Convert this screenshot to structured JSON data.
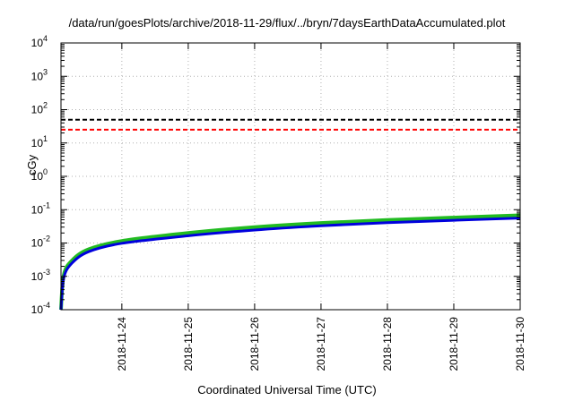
{
  "chart_data": {
    "type": "line",
    "title": "/data/run/goesPlots/archive/2018-11-29/flux/../bryn/7daysEarthDataAccumulated.plot",
    "xlabel": "Coordinated Universal Time (UTC)",
    "ylabel": "cGy",
    "y_scale": "log",
    "ylim": [
      0.0001,
      10000
    ],
    "y_ticks": [
      {
        "exp": -4,
        "label": "10",
        "sup": "-4"
      },
      {
        "exp": -3,
        "label": "10",
        "sup": "-3"
      },
      {
        "exp": -2,
        "label": "10",
        "sup": "-2"
      },
      {
        "exp": -1,
        "label": "10",
        "sup": "-1"
      },
      {
        "exp": 0,
        "label": "10",
        "sup": "0"
      },
      {
        "exp": 1,
        "label": "10",
        "sup": "1"
      },
      {
        "exp": 2,
        "label": "10",
        "sup": "2"
      },
      {
        "exp": 3,
        "label": "10",
        "sup": "3"
      },
      {
        "exp": 4,
        "label": "10",
        "sup": "4"
      }
    ],
    "xlim": [
      "2018-11-23T02:00",
      "2018-11-30T00:00"
    ],
    "x_ticks": [
      "2018-11-24",
      "2018-11-25",
      "2018-11-26",
      "2018-11-27",
      "2018-11-28",
      "2018-11-29",
      "2018-11-30"
    ],
    "grid": true,
    "thresholds": [
      {
        "value": 50,
        "color": "#000000",
        "style": "dashed"
      },
      {
        "value": 25,
        "color": "#ff0000",
        "style": "dashed"
      }
    ],
    "series": [
      {
        "color": "#22bb22",
        "x": [
          "2018-11-23T02:00",
          "2018-11-23T03:00",
          "2018-11-23T06:00",
          "2018-11-23T12:00",
          "2018-11-24T00:00",
          "2018-11-25T00:00",
          "2018-11-26T00:00",
          "2018-11-27T00:00",
          "2018-11-28T00:00",
          "2018-11-29T00:00",
          "2018-11-30T00:00"
        ],
        "values": [
          0.0001,
          0.0011,
          0.003,
          0.0065,
          0.0115,
          0.02,
          0.03,
          0.04,
          0.049,
          0.058,
          0.068
        ]
      },
      {
        "color": "#0000dd",
        "x": [
          "2018-11-23T02:00",
          "2018-11-23T03:00",
          "2018-11-23T06:00",
          "2018-11-23T12:00",
          "2018-11-24T00:00",
          "2018-11-25T00:00",
          "2018-11-26T00:00",
          "2018-11-27T00:00",
          "2018-11-28T00:00",
          "2018-11-29T00:00",
          "2018-11-30T00:00"
        ],
        "values": [
          0.0001,
          0.0009,
          0.0025,
          0.0055,
          0.0098,
          0.0165,
          0.0245,
          0.033,
          0.041,
          0.048,
          0.056
        ]
      }
    ]
  }
}
